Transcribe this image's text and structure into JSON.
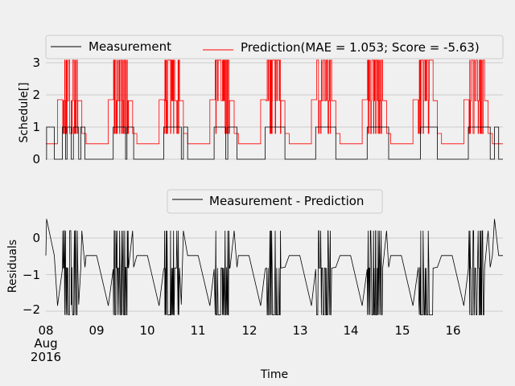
{
  "chart_data": [
    {
      "type": "line",
      "panel": "top",
      "ylabel": "Schedule[]",
      "ylim": [
        0,
        3.1
      ],
      "yticks": [
        0,
        1,
        2,
        3
      ],
      "xlim": [
        "2016-08-08",
        "2016-08-17"
      ],
      "grid": true,
      "legend": {
        "placement": "top",
        "columns": 2
      },
      "series": [
        {
          "name": "Measurement",
          "color": "#000000",
          "description_levels": {
            "off": 0,
            "on": 1
          },
          "points": [
            [
              "2016-08-08 00:00",
              0
            ],
            [
              "2016-08-08 00:20",
              0
            ],
            [
              "2016-08-08 00:20",
              1
            ],
            [
              "2016-08-08 04:00",
              1
            ],
            [
              "2016-08-08 04:00",
              0
            ],
            [
              "2016-08-08 07:50",
              0
            ],
            [
              "2016-08-08 07:50",
              1
            ],
            [
              "2016-08-08 09:20",
              1
            ],
            [
              "2016-08-08 09:20",
              0
            ],
            [
              "2016-08-08 10:00",
              0
            ],
            [
              "2016-08-08 10:00",
              1
            ],
            [
              "2016-08-08 12:00",
              1
            ],
            [
              "2016-08-08 12:00",
              0
            ],
            [
              "2016-08-08 13:00",
              0
            ],
            [
              "2016-08-08 13:00",
              1
            ],
            [
              "2016-08-08 15:30",
              1
            ],
            [
              "2016-08-08 15:30",
              0
            ],
            [
              "2016-08-08 16:30",
              0
            ],
            [
              "2016-08-08 16:30",
              1
            ],
            [
              "2016-08-08 18:30",
              1
            ],
            [
              "2016-08-08 18:30",
              0
            ],
            [
              "2016-08-09 07:50",
              0
            ],
            [
              "2016-08-09 07:50",
              1
            ],
            [
              "2016-08-09 13:40",
              1
            ],
            [
              "2016-08-09 13:40",
              0
            ],
            [
              "2016-08-09 14:20",
              0
            ],
            [
              "2016-08-09 14:20",
              1
            ],
            [
              "2016-08-09 17:30",
              1
            ],
            [
              "2016-08-09 17:30",
              0
            ],
            [
              "2016-08-10 07:40",
              0
            ],
            [
              "2016-08-10 07:40",
              1
            ],
            [
              "2016-08-10 16:00",
              1
            ],
            [
              "2016-08-10 16:00",
              0
            ],
            [
              "2016-08-10 17:00",
              0
            ],
            [
              "2016-08-10 17:00",
              1
            ],
            [
              "2016-08-10 19:00",
              1
            ],
            [
              "2016-08-10 19:00",
              0
            ],
            [
              "2016-08-11 07:30",
              0
            ],
            [
              "2016-08-11 07:30",
              1
            ],
            [
              "2016-08-11 13:00",
              1
            ],
            [
              "2016-08-11 13:00",
              0
            ],
            [
              "2016-08-11 14:00",
              0
            ],
            [
              "2016-08-11 14:00",
              1
            ],
            [
              "2016-08-11 18:20",
              1
            ],
            [
              "2016-08-11 18:20",
              0
            ],
            [
              "2016-08-12 07:40",
              0
            ],
            [
              "2016-08-12 07:40",
              1
            ],
            [
              "2016-08-12 17:00",
              1
            ],
            [
              "2016-08-12 17:00",
              0
            ],
            [
              "2016-08-13 07:30",
              0
            ],
            [
              "2016-08-13 07:30",
              1
            ],
            [
              "2016-08-13 17:00",
              1
            ],
            [
              "2016-08-13 17:00",
              0
            ],
            [
              "2016-08-14 07:50",
              0
            ],
            [
              "2016-08-14 07:50",
              1
            ],
            [
              "2016-08-14 18:00",
              1
            ],
            [
              "2016-08-14 18:00",
              0
            ],
            [
              "2016-08-15 09:00",
              0
            ],
            [
              "2016-08-15 09:00",
              1
            ],
            [
              "2016-08-15 17:00",
              1
            ],
            [
              "2016-08-15 17:00",
              0
            ],
            [
              "2016-08-16 07:40",
              0
            ],
            [
              "2016-08-16 07:40",
              1
            ],
            [
              "2016-08-16 18:00",
              1
            ],
            [
              "2016-08-16 18:00",
              0
            ],
            [
              "2016-08-16 20:00",
              0
            ],
            [
              "2016-08-16 20:00",
              1
            ],
            [
              "2016-08-16 22:00",
              1
            ],
            [
              "2016-08-16 22:00",
              0
            ],
            [
              "2016-08-17 00:00",
              0
            ]
          ]
        },
        {
          "name": "Prediction(MAE = 1.053; Score = -5.63)",
          "color": "#ff0000",
          "levels": {
            "night": 0.48,
            "day": 1.85,
            "mid": 1.82,
            "low": 0.8,
            "high": 3.1
          }
        }
      ]
    },
    {
      "type": "line",
      "panel": "bottom",
      "ylabel": "Residuals",
      "xlabel": "Time",
      "ylim": [
        -2.15,
        0.6
      ],
      "yticks": [
        -2,
        -1,
        0
      ],
      "xlim": [
        "2016-08-08",
        "2016-08-17"
      ],
      "grid": true,
      "legend": {
        "placement": "top"
      },
      "series": [
        {
          "name": "Measurement - Prediction",
          "color": "#000000"
        }
      ]
    }
  ],
  "top_axis": {
    "ytick_labels": [
      "0",
      "1",
      "2",
      "3"
    ],
    "ylabel": "Schedule[]"
  },
  "bottom_axis": {
    "ytick_labels": [
      "−2",
      "−1",
      "0"
    ],
    "ylabel": "Residuals",
    "xlabel": "Time",
    "xtick_labels": [
      "08",
      "09",
      "10",
      "11",
      "12",
      "13",
      "14",
      "15",
      "16"
    ],
    "xtick_sub": [
      "Aug",
      "2016"
    ]
  },
  "legend_top": {
    "measurement": "Measurement",
    "prediction": "Prediction(MAE = 1.053; Score = -5.63)"
  },
  "legend_bottom": {
    "residual": "Measurement - Prediction"
  }
}
